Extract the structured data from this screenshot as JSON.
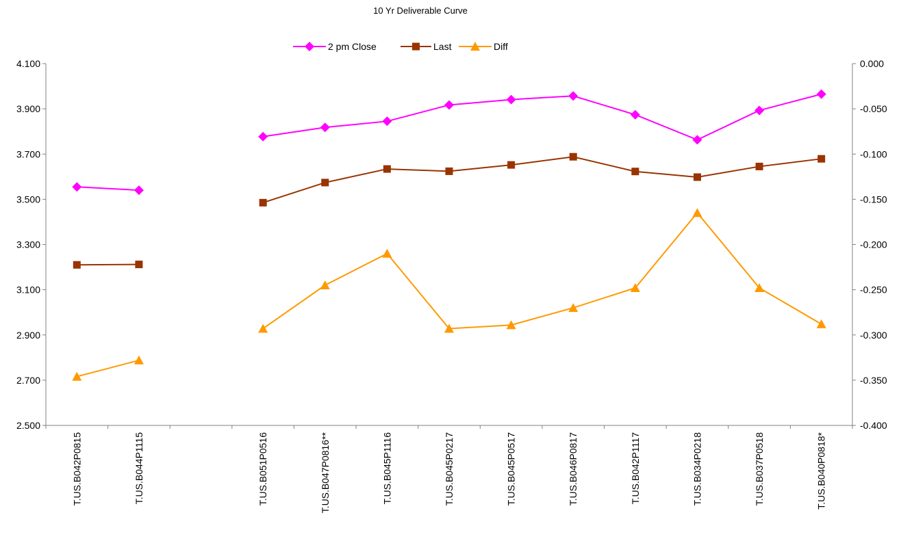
{
  "chart_data": {
    "type": "line",
    "title": "10 Yr Deliverable Curve",
    "categories": [
      "T.US.B042P0815",
      "T.US.B044P1115",
      "",
      "T.US.B051P0516",
      "T.US.B047P0816**",
      "T.US.B045P1116",
      "T.US.B045P0217",
      "T.US.B045P0517",
      "T.US.B046P0817",
      "T.US.B042P1117",
      "T.US.B034P0218",
      "T.US.B037P0518",
      "T.US.B040P0818*"
    ],
    "y_left": {
      "min": 2.5,
      "max": 4.1,
      "ticks": [
        "2.500",
        "2.700",
        "2.900",
        "3.100",
        "3.300",
        "3.500",
        "3.700",
        "3.900",
        "4.100"
      ]
    },
    "y_right": {
      "min": -0.4,
      "max": 0.0,
      "ticks": [
        "-0.400",
        "-0.350",
        "-0.300",
        "-0.250",
        "-0.200",
        "-0.150",
        "-0.100",
        "-0.050",
        "0.000"
      ]
    },
    "grid": false,
    "legend_position": "top-center",
    "series": [
      {
        "name": "2 pm  Close",
        "axis": "left",
        "marker": "diamond",
        "color": "#ff00ff",
        "values": [
          3.555,
          3.54,
          null,
          3.777,
          3.818,
          3.845,
          3.917,
          3.941,
          3.957,
          3.874,
          3.763,
          3.893,
          3.965
        ]
      },
      {
        "name": "Last",
        "axis": "left",
        "marker": "square",
        "color": "#993300",
        "values": [
          3.21,
          3.212,
          null,
          3.485,
          3.574,
          3.634,
          3.624,
          3.652,
          3.688,
          3.623,
          3.598,
          3.645,
          3.679
        ]
      },
      {
        "name": "Diff",
        "axis": "right",
        "marker": "triangle",
        "color": "#ff9900",
        "values": [
          -0.346,
          -0.328,
          null,
          -0.293,
          -0.245,
          -0.21,
          -0.293,
          -0.289,
          -0.27,
          -0.248,
          -0.165,
          -0.248,
          -0.288
        ]
      }
    ]
  }
}
